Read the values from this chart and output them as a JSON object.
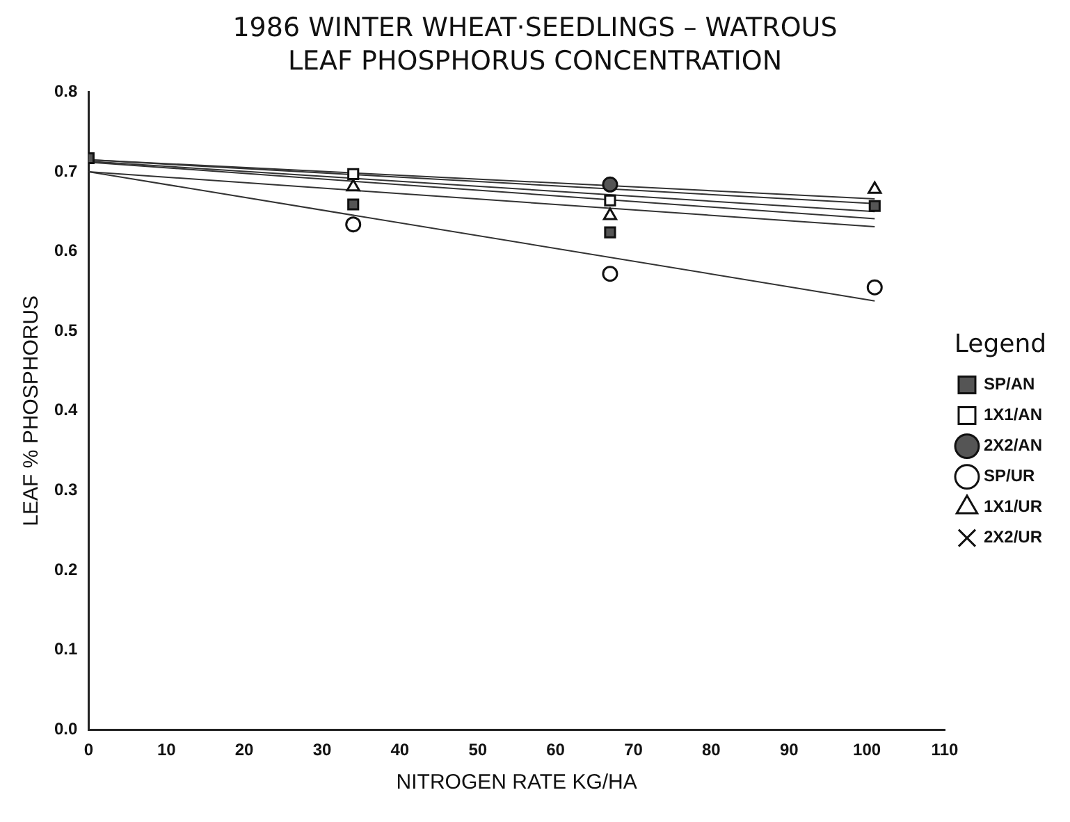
{
  "chart_data": {
    "type": "scatter",
    "title": "1986 WINTER WHEAT·SEEDLINGS – WATROUS\nLEAF PHOSPHORUS CONCENTRATION",
    "xlabel": "NITROGEN RATE KG/HA",
    "ylabel": "LEAF % PHOSPHORUS",
    "legend_title": "Legend",
    "legend": "right",
    "grid": false,
    "x": [
      0,
      34,
      67,
      101
    ],
    "xlim": [
      0,
      110
    ],
    "xticks": [
      0,
      10,
      20,
      30,
      40,
      50,
      60,
      70,
      80,
      90,
      100,
      110
    ],
    "ylim": [
      0,
      0.8
    ],
    "yticks": [
      {
        "value": 0,
        "label": "0.0"
      },
      0.1,
      0.2,
      0.3,
      0.4,
      0.5,
      0.6,
      0.7,
      0.8
    ],
    "series": [
      {
        "name": "SP/AN",
        "color": "#555555",
        "marker": "square",
        "values": [
          0.717,
          0.659,
          0.624,
          0.657
        ]
      },
      {
        "name": "1X1/AN",
        "color": "#ffffff",
        "marker": "square",
        "values": [
          null,
          0.697,
          0.664,
          null
        ]
      },
      {
        "name": "2X2/AN",
        "color": "#555555",
        "marker": "circle",
        "values": [
          null,
          null,
          0.684,
          null
        ]
      },
      {
        "name": "SP/UR",
        "color": "#ffffff",
        "marker": "circle",
        "values": [
          null,
          0.634,
          0.572,
          0.555
        ]
      },
      {
        "name": "1X1/UR",
        "color": "#ffffff",
        "marker": "triangle",
        "values": [
          null,
          0.681,
          0.645,
          0.678
        ]
      },
      {
        "name": "2X2/UR",
        "color": "#111111",
        "marker": "cross",
        "values": [
          null,
          null,
          null,
          null
        ]
      },
      {
        "type": "line",
        "color": "#333333",
        "values": [
          0.715,
          null,
          null,
          0.666
        ]
      },
      {
        "type": "line",
        "color": "#333333",
        "values": [
          0.715,
          null,
          null,
          0.66
        ]
      },
      {
        "type": "line",
        "color": "#333333",
        "values": [
          0.713,
          null,
          null,
          0.65
        ]
      },
      {
        "type": "line",
        "color": "#333333",
        "values": [
          0.712,
          null,
          null,
          0.641
        ]
      },
      {
        "type": "line",
        "color": "#333333",
        "values": [
          0.7,
          null,
          null,
          0.631
        ]
      },
      {
        "type": "line",
        "color": "#333333",
        "values": [
          0.7,
          null,
          null,
          0.538
        ]
      }
    ]
  }
}
